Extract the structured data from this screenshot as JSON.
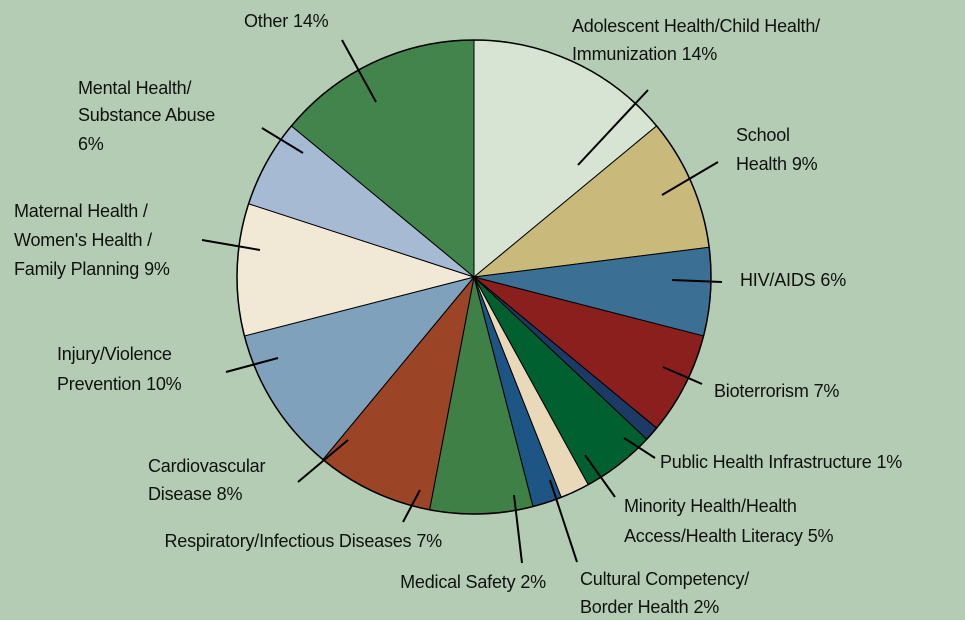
{
  "chart_data": {
    "type": "pie",
    "categories": [
      [
        "Adolescent Health/Child Health/",
        "Immunization"
      ],
      [
        "School",
        "Health"
      ],
      [
        "HIV/AIDS"
      ],
      [
        "Bioterrorism"
      ],
      [
        "Public Health Infrastructure"
      ],
      [
        "Minority Health/Health",
        "Access/Health Literacy"
      ],
      [
        "Cultural Competency/",
        "Border Health"
      ],
      [
        "Medical Safety"
      ],
      [
        "Respiratory/Infectious Diseases"
      ],
      [
        "Cardiovascular",
        "Disease"
      ],
      [
        "Injury/Violence",
        "Prevention"
      ],
      [
        "Maternal Health /",
        "Women's Health /",
        "Family Planning"
      ],
      [
        "Mental Health/",
        "Substance Abuse"
      ],
      [
        "Other"
      ]
    ],
    "values": [
      14,
      9,
      6,
      7,
      1,
      5,
      2,
      2,
      7,
      8,
      10,
      9,
      6,
      14
    ],
    "value_labels": [
      "14%",
      "9%",
      "6%",
      "7%",
      "1%",
      "5%",
      "2%",
      "2%",
      "7%",
      "8%",
      "10%",
      "9%",
      "6%",
      "14%"
    ],
    "colors": [
      "#d8e4d3",
      "#c9b97a",
      "#3b6f94",
      "#8a1f1d",
      "#1c3a66",
      "#006030",
      "#ead9b8",
      "#1d5584",
      "#3f8046",
      "#9b4526",
      "#7fa1bb",
      "#f2e8d6",
      "#a6bad4",
      "#42844b"
    ]
  }
}
